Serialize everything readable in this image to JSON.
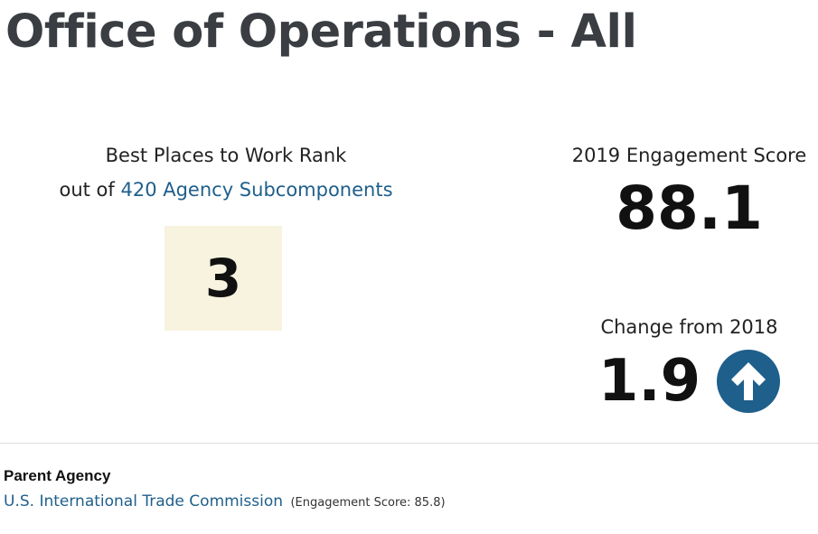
{
  "page": {
    "title": "Office of Operations - All"
  },
  "rank": {
    "label_line1": "Best Places to Work Rank",
    "label_prefix": "out of",
    "label_link": "420 Agency Subcomponents",
    "value": "3"
  },
  "engagement": {
    "label": "2019 Engagement Score",
    "score": "88.1"
  },
  "change": {
    "label": "Change from 2018",
    "value": "1.9",
    "direction_icon": "arrow-up-icon"
  },
  "parent": {
    "heading": "Parent Agency",
    "agency_name": "U.S. International Trade Commission",
    "engagement_score_text": "(Engagement Score: 85.8)"
  },
  "colors": {
    "link": "#1f5f8b",
    "rank_box": "#f7f3df",
    "title": "#3a3d42"
  }
}
